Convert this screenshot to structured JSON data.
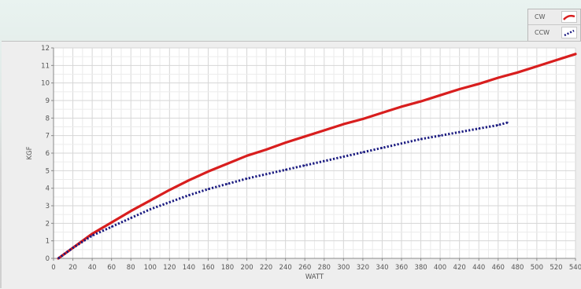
{
  "legend": {
    "items": [
      {
        "label": "CW",
        "color": "#d81e1e",
        "style": "solid"
      },
      {
        "label": "CCW",
        "color": "#1a1a80",
        "style": "dotted"
      }
    ]
  },
  "chart_data": {
    "type": "line",
    "title": "",
    "xlabel": "WATT",
    "ylabel": "KGF",
    "xlim": [
      0,
      540
    ],
    "ylim": [
      0,
      12
    ],
    "x_ticks": [
      0,
      20,
      40,
      60,
      80,
      100,
      120,
      140,
      160,
      180,
      200,
      220,
      240,
      260,
      280,
      300,
      320,
      340,
      360,
      380,
      400,
      420,
      440,
      460,
      480,
      500,
      520,
      540
    ],
    "y_ticks": [
      0,
      1,
      2,
      3,
      4,
      5,
      6,
      7,
      8,
      9,
      10,
      11,
      12
    ],
    "grid": true,
    "legend_position": "top-right",
    "series": [
      {
        "name": "CW",
        "color": "#d81e1e",
        "style": "solid",
        "x": [
          5,
          20,
          40,
          60,
          80,
          100,
          120,
          140,
          160,
          180,
          200,
          220,
          240,
          260,
          280,
          300,
          320,
          340,
          360,
          380,
          400,
          420,
          440,
          460,
          480,
          500,
          520,
          540
        ],
        "y": [
          0.0,
          0.6,
          1.4,
          2.05,
          2.7,
          3.3,
          3.9,
          4.45,
          4.95,
          5.4,
          5.85,
          6.2,
          6.6,
          6.95,
          7.3,
          7.65,
          7.95,
          8.3,
          8.65,
          8.95,
          9.3,
          9.65,
          9.95,
          10.3,
          10.6,
          10.95,
          11.3,
          11.65
        ]
      },
      {
        "name": "CCW",
        "color": "#1a1a80",
        "style": "dotted",
        "x": [
          5,
          20,
          40,
          60,
          80,
          100,
          120,
          140,
          160,
          180,
          200,
          220,
          240,
          260,
          280,
          300,
          320,
          340,
          360,
          380,
          400,
          420,
          440,
          460,
          470
        ],
        "y": [
          0.0,
          0.6,
          1.3,
          1.8,
          2.3,
          2.8,
          3.2,
          3.6,
          3.95,
          4.25,
          4.55,
          4.8,
          5.05,
          5.3,
          5.55,
          5.8,
          6.05,
          6.3,
          6.55,
          6.8,
          7.0,
          7.2,
          7.4,
          7.6,
          7.75
        ]
      }
    ]
  }
}
